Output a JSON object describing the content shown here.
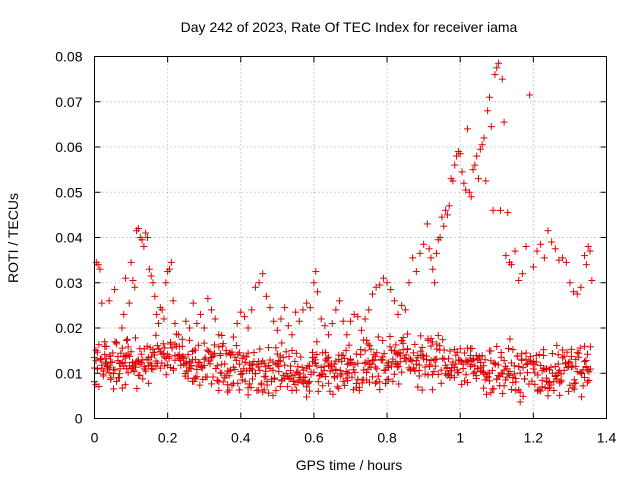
{
  "chart_data": {
    "type": "scatter",
    "title": "Day 242 of 2023, Rate Of TEC Index for receiver iama",
    "xlabel": "GPS time / hours",
    "ylabel": "ROTI / TECUs",
    "xlim": [
      0,
      1.4
    ],
    "ylim": [
      0,
      0.08
    ],
    "xticks": [
      0,
      0.2,
      0.4,
      0.6,
      0.8,
      1.0,
      1.2,
      1.4
    ],
    "yticks": [
      0,
      0.01,
      0.02,
      0.03,
      0.04,
      0.05,
      0.06,
      0.07,
      0.08
    ],
    "xtick_labels": [
      "0",
      "0.2",
      "0.4",
      "0.6",
      "0.8",
      "1",
      "1.2",
      "1.4"
    ],
    "ytick_labels": [
      "0",
      "0.01",
      "0.02",
      "0.03",
      "0.04",
      "0.05",
      "0.06",
      "0.07",
      "0.08"
    ],
    "grid": true,
    "marker": "+",
    "color": "#dd0000",
    "series": [
      {
        "name": "ROTI",
        "points": [
          [
            0.0,
            0.0135
          ],
          [
            0.005,
            0.0345
          ],
          [
            0.01,
            0.034
          ],
          [
            0.015,
            0.033
          ],
          [
            0.02,
            0.0255
          ],
          [
            0.025,
            0.0105
          ],
          [
            0.03,
            0.0125
          ],
          [
            0.035,
            0.0115
          ],
          [
            0.04,
            0.026
          ],
          [
            0.045,
            0.009
          ],
          [
            0.05,
            0.0145
          ],
          [
            0.055,
            0.0285
          ],
          [
            0.06,
            0.0165
          ],
          [
            0.065,
            0.009
          ],
          [
            0.07,
            0.011
          ],
          [
            0.075,
            0.02
          ],
          [
            0.08,
            0.023
          ],
          [
            0.085,
            0.031
          ],
          [
            0.09,
            0.0175
          ],
          [
            0.095,
            0.0255
          ],
          [
            0.1,
            0.0345
          ],
          [
            0.105,
            0.0305
          ],
          [
            0.11,
            0.029
          ],
          [
            0.115,
            0.0415
          ],
          [
            0.12,
            0.042
          ],
          [
            0.125,
            0.04
          ],
          [
            0.13,
            0.0395
          ],
          [
            0.135,
            0.038
          ],
          [
            0.14,
            0.041
          ],
          [
            0.145,
            0.04
          ],
          [
            0.15,
            0.033
          ],
          [
            0.155,
            0.0315
          ],
          [
            0.16,
            0.03
          ],
          [
            0.165,
            0.027
          ],
          [
            0.17,
            0.023
          ],
          [
            0.175,
            0.021
          ],
          [
            0.18,
            0.0245
          ],
          [
            0.185,
            0.024
          ],
          [
            0.19,
            0.022
          ],
          [
            0.195,
            0.03
          ],
          [
            0.2,
            0.0325
          ],
          [
            0.205,
            0.033
          ],
          [
            0.21,
            0.0345
          ],
          [
            0.215,
            0.026
          ],
          [
            0.22,
            0.021
          ],
          [
            0.23,
            0.0185
          ],
          [
            0.24,
            0.0175
          ],
          [
            0.25,
            0.0215
          ],
          [
            0.26,
            0.02
          ],
          [
            0.27,
            0.0255
          ],
          [
            0.28,
            0.021
          ],
          [
            0.29,
            0.023
          ],
          [
            0.3,
            0.02
          ],
          [
            0.31,
            0.0265
          ],
          [
            0.32,
            0.024
          ],
          [
            0.33,
            0.022
          ],
          [
            0.34,
            0.0185
          ],
          [
            0.35,
            0.016
          ],
          [
            0.36,
            0.015
          ],
          [
            0.37,
            0.0145
          ],
          [
            0.38,
            0.018
          ],
          [
            0.39,
            0.021
          ],
          [
            0.4,
            0.0235
          ],
          [
            0.41,
            0.0225
          ],
          [
            0.42,
            0.02
          ],
          [
            0.43,
            0.024
          ],
          [
            0.44,
            0.029
          ],
          [
            0.45,
            0.03
          ],
          [
            0.46,
            0.032
          ],
          [
            0.47,
            0.027
          ],
          [
            0.48,
            0.0245
          ],
          [
            0.49,
            0.0215
          ],
          [
            0.5,
            0.0195
          ],
          [
            0.51,
            0.022
          ],
          [
            0.52,
            0.0245
          ],
          [
            0.53,
            0.0205
          ],
          [
            0.54,
            0.0185
          ],
          [
            0.55,
            0.0235
          ],
          [
            0.56,
            0.0215
          ],
          [
            0.57,
            0.024
          ],
          [
            0.58,
            0.0255
          ],
          [
            0.59,
            0.0245
          ],
          [
            0.6,
            0.03
          ],
          [
            0.605,
            0.0325
          ],
          [
            0.61,
            0.028
          ],
          [
            0.62,
            0.022
          ],
          [
            0.63,
            0.0205
          ],
          [
            0.64,
            0.0185
          ],
          [
            0.65,
            0.021
          ],
          [
            0.66,
            0.024
          ],
          [
            0.67,
            0.026
          ],
          [
            0.68,
            0.0215
          ],
          [
            0.69,
            0.0185
          ],
          [
            0.7,
            0.0215
          ],
          [
            0.71,
            0.023
          ],
          [
            0.72,
            0.0225
          ],
          [
            0.73,
            0.0195
          ],
          [
            0.74,
            0.022
          ],
          [
            0.75,
            0.024
          ],
          [
            0.76,
            0.0275
          ],
          [
            0.77,
            0.029
          ],
          [
            0.78,
            0.0295
          ],
          [
            0.79,
            0.031
          ],
          [
            0.8,
            0.03
          ],
          [
            0.81,
            0.0285
          ],
          [
            0.82,
            0.026
          ],
          [
            0.83,
            0.023
          ],
          [
            0.84,
            0.025
          ],
          [
            0.85,
            0.024
          ],
          [
            0.86,
            0.03
          ],
          [
            0.87,
            0.0355
          ],
          [
            0.88,
            0.0325
          ],
          [
            0.89,
            0.0365
          ],
          [
            0.9,
            0.0385
          ],
          [
            0.91,
            0.043
          ],
          [
            0.915,
            0.0375
          ],
          [
            0.92,
            0.0355
          ],
          [
            0.925,
            0.033
          ],
          [
            0.93,
            0.03
          ],
          [
            0.935,
            0.0365
          ],
          [
            0.94,
            0.0395
          ],
          [
            0.945,
            0.04
          ],
          [
            0.95,
            0.0445
          ],
          [
            0.955,
            0.0425
          ],
          [
            0.96,
            0.046
          ],
          [
            0.965,
            0.045
          ],
          [
            0.97,
            0.047
          ],
          [
            0.975,
            0.053
          ],
          [
            0.98,
            0.0525
          ],
          [
            0.985,
            0.056
          ],
          [
            0.99,
            0.058
          ],
          [
            0.995,
            0.059
          ],
          [
            1.0,
            0.0585
          ],
          [
            1.005,
            0.0545
          ],
          [
            1.01,
            0.052
          ],
          [
            1.015,
            0.0505
          ],
          [
            1.02,
            0.064
          ],
          [
            1.025,
            0.05
          ],
          [
            1.03,
            0.049
          ],
          [
            1.035,
            0.055
          ],
          [
            1.04,
            0.056
          ],
          [
            1.045,
            0.058
          ],
          [
            1.05,
            0.053
          ],
          [
            1.055,
            0.0595
          ],
          [
            1.06,
            0.0605
          ],
          [
            1.065,
            0.062
          ],
          [
            1.07,
            0.0525
          ],
          [
            1.075,
            0.068
          ],
          [
            1.08,
            0.071
          ],
          [
            1.085,
            0.0645
          ],
          [
            1.09,
            0.046
          ],
          [
            1.095,
            0.076
          ],
          [
            1.1,
            0.0775
          ],
          [
            1.105,
            0.0785
          ],
          [
            1.11,
            0.046
          ],
          [
            1.115,
            0.075
          ],
          [
            1.12,
            0.0655
          ],
          [
            1.125,
            0.036
          ],
          [
            1.13,
            0.0455
          ],
          [
            1.135,
            0.0345
          ],
          [
            1.14,
            0.034
          ],
          [
            1.15,
            0.037
          ],
          [
            1.16,
            0.0305
          ],
          [
            1.17,
            0.032
          ],
          [
            1.18,
            0.038
          ],
          [
            1.19,
            0.0715
          ],
          [
            1.2,
            0.0335
          ],
          [
            1.21,
            0.037
          ],
          [
            1.22,
            0.0385
          ],
          [
            1.23,
            0.0355
          ],
          [
            1.24,
            0.0415
          ],
          [
            1.25,
            0.039
          ],
          [
            1.26,
            0.0375
          ],
          [
            1.27,
            0.035
          ],
          [
            1.28,
            0.0355
          ],
          [
            1.29,
            0.0345
          ],
          [
            1.3,
            0.03
          ],
          [
            1.31,
            0.028
          ],
          [
            1.32,
            0.0275
          ],
          [
            1.33,
            0.029
          ],
          [
            1.34,
            0.036
          ],
          [
            1.345,
            0.034
          ],
          [
            1.35,
            0.038
          ],
          [
            1.355,
            0.037
          ],
          [
            1.36,
            0.0305
          ]
        ]
      }
    ],
    "band": {
      "note": "dense scatter band of ROTI values",
      "x_start": 0.0,
      "x_end": 1.36,
      "x_step": 0.004,
      "center": 0.0115,
      "spread": 0.008,
      "min": 0.0035
    }
  }
}
